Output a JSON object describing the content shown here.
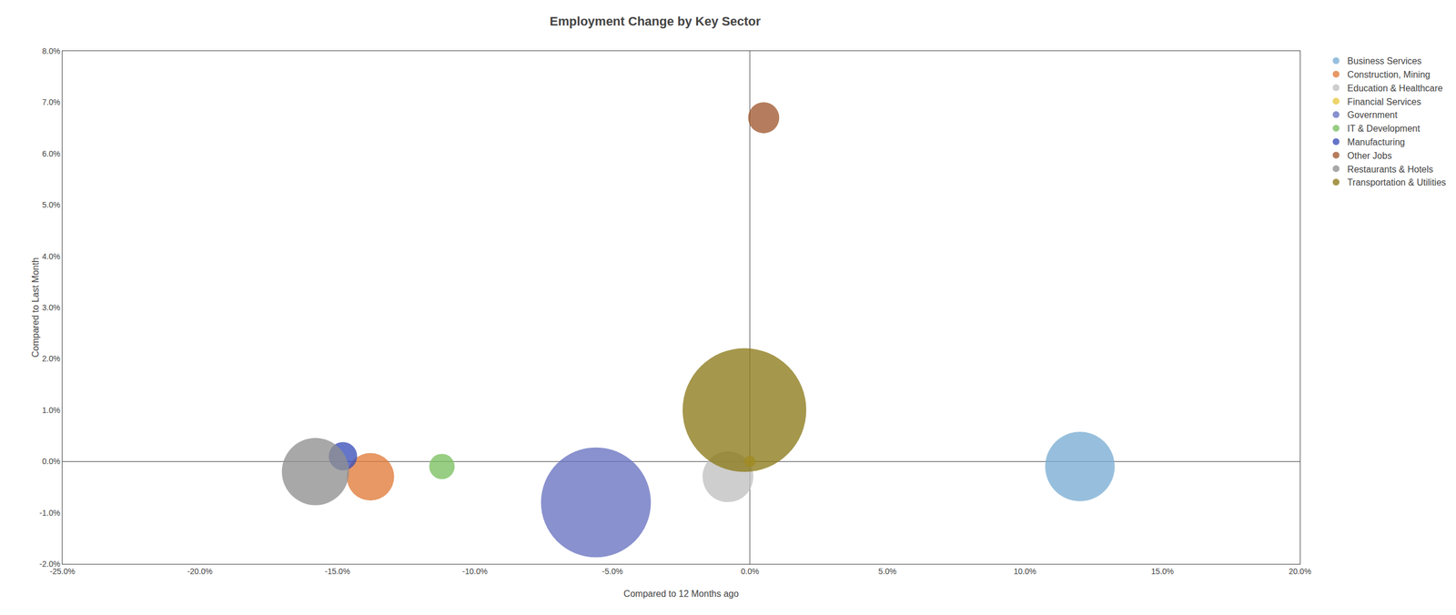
{
  "chart_data": {
    "type": "scatter",
    "title": "Employment Change by Key Sector",
    "xlabel": "Compared to 12 Months ago",
    "ylabel": "Compared to Last Month",
    "xlim": [
      -0.25,
      0.2
    ],
    "ylim": [
      -0.02,
      0.08
    ],
    "xticks": [
      {
        "value": -0.25,
        "label": "-25.0%"
      },
      {
        "value": -0.2,
        "label": "-20.0%"
      },
      {
        "value": -0.15,
        "label": "-15.0%"
      },
      {
        "value": -0.1,
        "label": "-10.0%"
      },
      {
        "value": -0.05,
        "label": "-5.0%"
      },
      {
        "value": 0.0,
        "label": "0.0%"
      },
      {
        "value": 0.05,
        "label": "5.0%"
      },
      {
        "value": 0.1,
        "label": "10.0%"
      },
      {
        "value": 0.15,
        "label": "15.0%"
      },
      {
        "value": 0.2,
        "label": "20.0%"
      }
    ],
    "yticks": [
      {
        "value": -0.02,
        "label": "-2.0%"
      },
      {
        "value": -0.01,
        "label": "-1.0%"
      },
      {
        "value": 0.0,
        "label": "0.0%"
      },
      {
        "value": 0.01,
        "label": "1.0%"
      },
      {
        "value": 0.02,
        "label": "2.0%"
      },
      {
        "value": 0.03,
        "label": "3.0%"
      },
      {
        "value": 0.04,
        "label": "4.0%"
      },
      {
        "value": 0.05,
        "label": "5.0%"
      },
      {
        "value": 0.06,
        "label": "6.0%"
      },
      {
        "value": 0.07,
        "label": "7.0%"
      },
      {
        "value": 0.08,
        "label": "8.0%"
      }
    ],
    "grid": false,
    "legend": "right",
    "marker": "circle",
    "series": [
      {
        "name": "Business Services",
        "x": 0.12,
        "y": -0.001,
        "size": 3000,
        "color": "#7aadd4"
      },
      {
        "name": "Construction, Mining",
        "x": -0.138,
        "y": -0.003,
        "size": 1400,
        "color": "#e07b3a"
      },
      {
        "name": "Education & Healthcare",
        "x": -0.008,
        "y": -0.003,
        "size": 1600,
        "color": "#c0c0c0"
      },
      {
        "name": "Financial Services",
        "x": 0.0,
        "y": 0.0,
        "size": 80,
        "color": "#e8c840"
      },
      {
        "name": "Government",
        "x": -0.056,
        "y": -0.008,
        "size": 7500,
        "color": "#6872c0"
      },
      {
        "name": "IT & Development",
        "x": -0.112,
        "y": -0.001,
        "size": 400,
        "color": "#7ac060"
      },
      {
        "name": "Manufacturing",
        "x": -0.148,
        "y": 0.001,
        "size": 500,
        "color": "#3a4eb8"
      },
      {
        "name": "Other Jobs",
        "x": 0.005,
        "y": 0.067,
        "size": 600,
        "color": "#a05830"
      },
      {
        "name": "Restaurants & Hotels",
        "x": -0.158,
        "y": -0.002,
        "size": 2800,
        "color": "#909090"
      },
      {
        "name": "Transportation & Utilities",
        "x": -0.002,
        "y": 0.01,
        "size": 9500,
        "color": "#8c7a1a"
      }
    ]
  }
}
